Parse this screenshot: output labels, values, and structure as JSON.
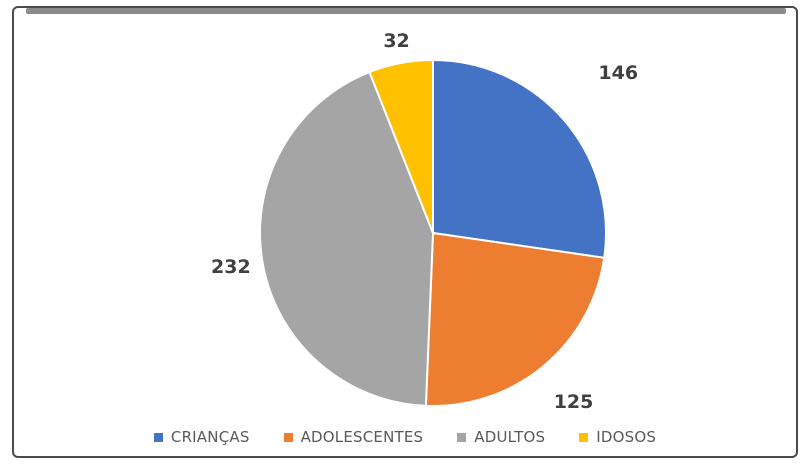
{
  "chart_data": {
    "type": "pie",
    "categories": [
      "CRIANÇAS",
      "ADOLESCENTES",
      "ADULTOS",
      "IDOSOS"
    ],
    "values": [
      146,
      125,
      232,
      32
    ],
    "data_labels": [
      "146",
      "125",
      "232",
      "32"
    ],
    "colors": [
      "#4472C4",
      "#ED7D31",
      "#A5A5A5",
      "#FFC000"
    ],
    "start_angle_deg": 0,
    "direction": "clockwise",
    "legend_position": "bottom",
    "title": ""
  }
}
